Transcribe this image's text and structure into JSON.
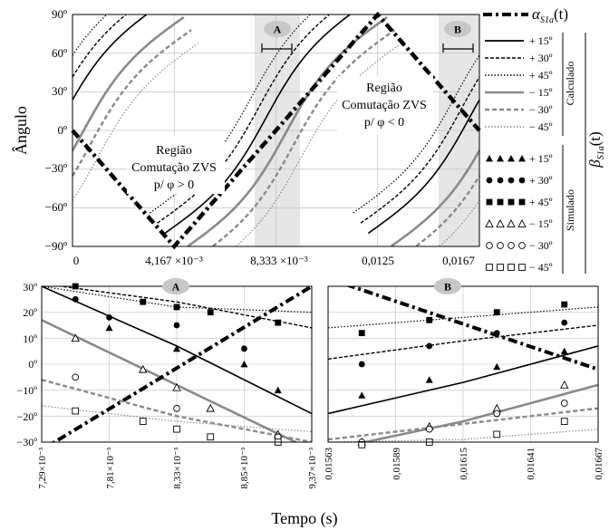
{
  "chart_data": [
    {
      "type": "line",
      "ylabel": "Ângulo",
      "xlim": [
        0,
        0.01667
      ],
      "ylim": [
        -90,
        90
      ],
      "yticks": [
        "90º",
        "60º",
        "30º",
        "0º",
        "−30º",
        "−60º",
        "−90º"
      ],
      "xticks": [
        "0",
        "4,167 ×10⁻³",
        "8,333 ×10⁻³",
        "0,0125",
        "0,0167"
      ],
      "regions": [
        {
          "lines": [
            "Região",
            "Comutação ZVS",
            "p/ φ > 0"
          ]
        },
        {
          "lines": [
            "Região",
            "Comutação ZVS",
            "p/ φ < 0"
          ]
        }
      ],
      "zoom_markers": [
        "A",
        "B"
      ],
      "legend": {
        "alpha_label": "α",
        "alpha_sub": "S1a",
        "alpha_suffix": "(t)",
        "beta_label": "β",
        "beta_sub": "S1a",
        "beta_suffix": "(t)",
        "calculated_group": "Calculado",
        "simulated_group": "Simulado",
        "calculated": [
          "+ 15º",
          "+ 30º",
          "+ 45º",
          "− 15º",
          "− 30º",
          "− 45º"
        ],
        "simulated": [
          "+ 15º",
          "+ 30º",
          "+ 45º",
          "− 15º",
          "− 30º",
          "− 45º"
        ]
      },
      "series": [
        {
          "name": "α_S1a(t)",
          "x": [
            0,
            0.00417,
            0.00833,
            0.0125,
            0.01667
          ],
          "y": [
            0,
            -87,
            0,
            87,
            0
          ]
        },
        {
          "name": "Calculado + 15º",
          "x": [
            0.0,
            0.00333,
            0.00417,
            0.00833,
            0.0104,
            0.0125,
            0.0146,
            0.01667
          ],
          "y": [
            10,
            70,
            90,
            12,
            -80,
            null,
            -40,
            12
          ]
        },
        {
          "name": "Calculado − 15º",
          "x": [
            0.0,
            0.00333,
            0.00417,
            0.00833,
            0.0104,
            0.0125,
            0.0146,
            0.01667
          ],
          "y": [
            -2,
            60,
            90,
            0,
            -90,
            null,
            -60,
            0
          ]
        }
      ]
    },
    {
      "type": "line",
      "title": "A",
      "xlim": [
        0.00729,
        0.00937
      ],
      "ylim": [
        -30,
        30
      ],
      "xticks": [
        "7,29×10⁻³",
        "7,81×10⁻³",
        "8,33×10⁻³",
        "8,85×10⁻³",
        "9,37×10⁻³"
      ],
      "yticks": [
        "30º",
        "20º",
        "10º",
        "0º",
        "−10º",
        "−20º",
        "−30º"
      ],
      "series": [
        {
          "name": "α_S1a(t)",
          "x": [
            0.00729,
            0.00937
          ],
          "y": [
            -33,
            30
          ]
        },
        {
          "name": "+ 15º",
          "x": [
            0.00729,
            0.00833,
            0.00937
          ],
          "y": [
            30,
            7,
            -19
          ]
        },
        {
          "name": "+ 30º",
          "x": [
            0.00729,
            0.00833,
            0.00937
          ],
          "y": [
            31,
            24,
            14
          ]
        },
        {
          "name": "+ 45º",
          "x": [
            0.00729,
            0.00833,
            0.00937
          ],
          "y": [
            30,
            22,
            20
          ]
        },
        {
          "name": "− 15º",
          "x": [
            0.00729,
            0.00833,
            0.00937
          ],
          "y": [
            17,
            -8,
            -33
          ]
        },
        {
          "name": "− 30º",
          "x": [
            0.00729,
            0.00833,
            0.00937
          ],
          "y": [
            -6,
            -20,
            -30
          ]
        },
        {
          "name": "− 45º",
          "x": [
            0.00729,
            0.00833,
            0.00937
          ],
          "y": [
            -16,
            -22,
            -26
          ]
        }
      ],
      "simulated": {
        "p15": [
          [
            0.00781,
            14
          ],
          [
            0.00833,
            6
          ],
          [
            0.00885,
            0
          ],
          [
            0.00911,
            -10
          ]
        ],
        "p30": [
          [
            0.00755,
            25
          ],
          [
            0.00781,
            18
          ],
          [
            0.00833,
            15
          ],
          [
            0.00885,
            6
          ]
        ],
        "p45": [
          [
            0.00755,
            30
          ],
          [
            0.00807,
            24
          ],
          [
            0.00833,
            22
          ],
          [
            0.00859,
            20
          ],
          [
            0.00911,
            16
          ]
        ],
        "m15": [
          [
            0.00755,
            10
          ],
          [
            0.00807,
            -2
          ],
          [
            0.00833,
            -9
          ],
          [
            0.00859,
            -17
          ],
          [
            0.00911,
            -27
          ]
        ],
        "m30": [
          [
            0.00755,
            -5
          ],
          [
            0.00833,
            -17
          ],
          [
            0.00911,
            -28
          ]
        ],
        "m45": [
          [
            0.00755,
            -18
          ],
          [
            0.00807,
            -22
          ],
          [
            0.00833,
            -25
          ],
          [
            0.00859,
            -28
          ],
          [
            0.00911,
            -30
          ]
        ]
      }
    },
    {
      "type": "line",
      "title": "B",
      "xlim": [
        0.01563,
        0.01667
      ],
      "ylim": [
        -30,
        30
      ],
      "xticks": [
        "0,01563",
        "0,01589",
        "0,01615",
        "0,01641",
        "0,01667"
      ],
      "series": [
        {
          "name": "α_S1a(t)",
          "x": [
            0.01563,
            0.01667
          ],
          "y": [
            33,
            -2
          ]
        },
        {
          "name": "+ 15º",
          "x": [
            0.01563,
            0.01615,
            0.01667
          ],
          "y": [
            -19,
            -7,
            7
          ]
        },
        {
          "name": "+ 30º",
          "x": [
            0.01563,
            0.01615,
            0.01667
          ],
          "y": [
            2,
            9,
            15
          ]
        },
        {
          "name": "+ 45º",
          "x": [
            0.01563,
            0.01615,
            0.01667
          ],
          "y": [
            14,
            18,
            22
          ]
        },
        {
          "name": "− 15º",
          "x": [
            0.01563,
            0.01615,
            0.01667
          ],
          "y": [
            -33,
            -22,
            -8
          ]
        },
        {
          "name": "− 30º",
          "x": [
            0.01563,
            0.01615,
            0.01667
          ],
          "y": [
            -29,
            -23,
            -17
          ]
        },
        {
          "name": "− 45º",
          "x": [
            0.01563,
            0.01615,
            0.01667
          ],
          "y": [
            -30,
            -29,
            -25
          ]
        }
      ],
      "simulated": {
        "p15": [
          [
            0.01576,
            -12
          ],
          [
            0.01602,
            -6
          ],
          [
            0.01628,
            -1
          ],
          [
            0.01654,
            5
          ]
        ],
        "p30": [
          [
            0.01576,
            0
          ],
          [
            0.01602,
            7
          ],
          [
            0.01628,
            12
          ],
          [
            0.01654,
            16
          ]
        ],
        "p45": [
          [
            0.01576,
            12
          ],
          [
            0.01602,
            17
          ],
          [
            0.01628,
            20
          ],
          [
            0.01654,
            23
          ]
        ],
        "m15": [
          [
            0.01576,
            -30
          ],
          [
            0.01602,
            -24
          ],
          [
            0.01628,
            -17
          ],
          [
            0.01654,
            -8
          ]
        ],
        "m30": [
          [
            0.01576,
            -30
          ],
          [
            0.01602,
            -25
          ],
          [
            0.01628,
            -19
          ],
          [
            0.01654,
            -15
          ]
        ],
        "m45": [
          [
            0.01576,
            -31
          ],
          [
            0.01602,
            -30
          ],
          [
            0.01628,
            -27
          ],
          [
            0.01654,
            -22
          ]
        ]
      }
    }
  ],
  "xlabel": "Tempo (s)"
}
